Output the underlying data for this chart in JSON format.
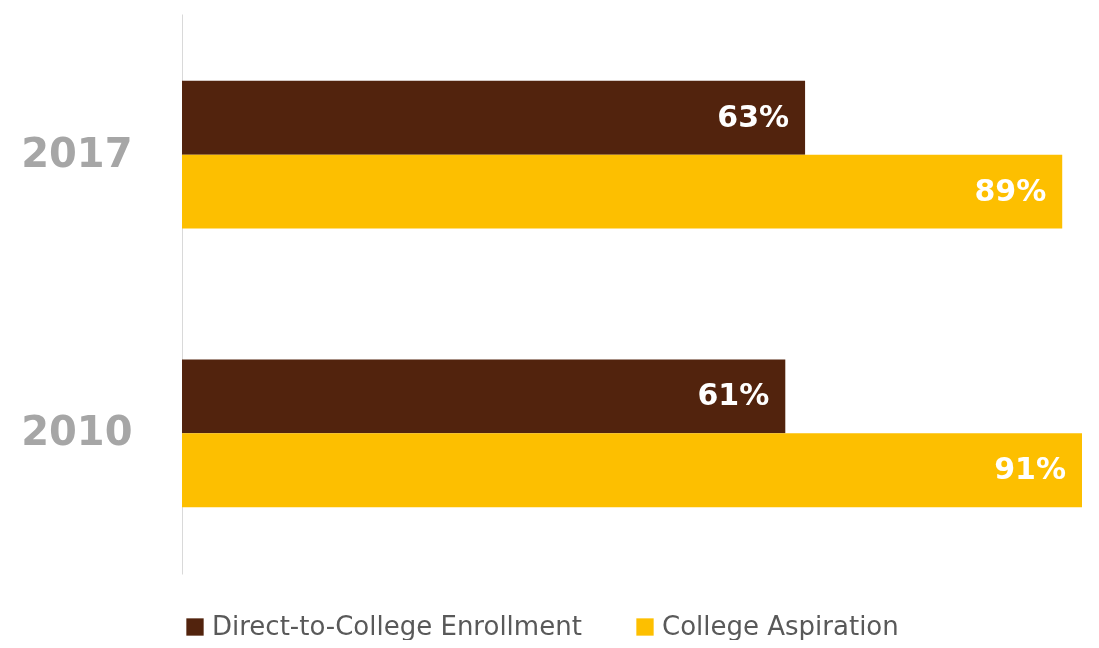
{
  "chart_data": {
    "type": "bar",
    "orientation": "horizontal",
    "categories": [
      "2017",
      "2010"
    ],
    "series": [
      {
        "name": "Direct-to-College Enrollment",
        "color": "#52230d",
        "values": [
          63,
          61
        ],
        "value_labels": [
          "63%",
          "61%"
        ]
      },
      {
        "name": "College Aspiration",
        "color": "#fdbf00",
        "values": [
          89,
          91
        ],
        "value_labels": [
          "89%",
          "91%"
        ]
      }
    ],
    "legend": "bottom"
  }
}
